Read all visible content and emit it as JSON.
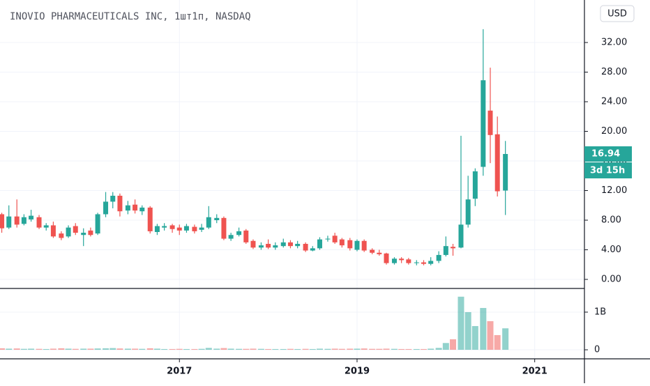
{
  "chart_data": {
    "type": "candlestick",
    "title": "INOVIO PHARMACEUTICALS INC, 1шт1п, NASDAQ",
    "currency": "USD",
    "countdown": "3d 15h",
    "up_color": "#26a69a",
    "down_color": "#ef5350",
    "volume_up_color": "#26a69a80",
    "volume_down_color": "#ef535080",
    "grid": true,
    "xlim": [
      2014.98,
      2021.56
    ],
    "xticks": [
      2017,
      2019,
      2021
    ],
    "ylim": [
      -1.13,
      37.74
    ],
    "yticks": [
      {
        "value": 0,
        "label": "0.00"
      },
      {
        "value": 4,
        "label": "4.00"
      },
      {
        "value": 8,
        "label": "8.00"
      },
      {
        "value": 12,
        "label": "12.00"
      },
      {
        "value": 16,
        "label": "16.00"
      },
      {
        "value": 20,
        "label": "20.00"
      },
      {
        "value": 24,
        "label": "24.00"
      },
      {
        "value": 28,
        "label": "28.00"
      },
      {
        "value": 32,
        "label": "32.00"
      }
    ],
    "volume_ylim": [
      -240000000,
      1610000000
    ],
    "volume_yticks": [
      0,
      {
        "value": 1000000000,
        "label": "1B"
      }
    ],
    "x": [
      2015,
      2015.08,
      2015.17,
      2015.25,
      2015.33,
      2015.42,
      2015.5,
      2015.58,
      2015.67,
      2015.75,
      2015.83,
      2015.92,
      2016,
      2016.08,
      2016.17,
      2016.25,
      2016.33,
      2016.42,
      2016.5,
      2016.58,
      2016.67,
      2016.75,
      2016.83,
      2016.92,
      2017,
      2017.08,
      2017.17,
      2017.25,
      2017.33,
      2017.42,
      2017.5,
      2017.58,
      2017.67,
      2017.75,
      2017.83,
      2017.92,
      2018,
      2018.08,
      2018.17,
      2018.25,
      2018.33,
      2018.42,
      2018.5,
      2018.58,
      2018.67,
      2018.75,
      2018.83,
      2018.92,
      2019,
      2019.08,
      2019.17,
      2019.25,
      2019.33,
      2019.42,
      2019.5,
      2019.58,
      2019.67,
      2019.75,
      2019.83,
      2019.92,
      2020,
      2020.08,
      2020.17,
      2020.25,
      2020.33,
      2020.42,
      2020.5,
      2020.58,
      2020.67
    ],
    "open": [
      8.8,
      7.0,
      8.5,
      7.5,
      8.1,
      8.4,
      7.0,
      7.3,
      6.2,
      5.8,
      7.2,
      6.0,
      6.6,
      6.2,
      8.8,
      10.5,
      11.3,
      9.3,
      10.1,
      9.2,
      9.7,
      6.4,
      7.0,
      7.3,
      7.0,
      6.6,
      7.1,
      6.7,
      7.0,
      8.0,
      8.3,
      5.5,
      6.0,
      6.6,
      5.2,
      4.3,
      4.8,
      4.3,
      4.5,
      5.0,
      4.5,
      4.8,
      3.9,
      4.2,
      5.4,
      5.9,
      5.4,
      5.3,
      4.0,
      5.2,
      4.0,
      3.6,
      3.5,
      2.2,
      2.8,
      2.7,
      2.2,
      2.3,
      2.1,
      2.5,
      3.3,
      4.4,
      4.3,
      7.4,
      10.9,
      15.2,
      22.8,
      19.6,
      12.0
    ],
    "high": [
      9.0,
      10.0,
      10.8,
      8.8,
      9.4,
      8.7,
      7.6,
      7.8,
      6.5,
      7.3,
      7.6,
      6.9,
      7.0,
      9.0,
      11.8,
      11.8,
      11.6,
      10.6,
      10.8,
      10.0,
      9.9,
      7.5,
      7.6,
      7.5,
      7.4,
      7.5,
      7.4,
      7.5,
      9.9,
      8.8,
      8.5,
      6.3,
      7.0,
      6.8,
      5.4,
      5.0,
      5.4,
      5.0,
      5.5,
      5.3,
      5.2,
      5.0,
      4.5,
      5.7,
      5.9,
      6.3,
      5.6,
      5.6,
      5.4,
      5.4,
      4.2,
      4.0,
      3.6,
      3.0,
      3.0,
      2.9,
      2.6,
      2.6,
      3.0,
      3.8,
      5.8,
      4.8,
      19.4,
      14.0,
      15.0,
      33.8,
      28.6,
      22.0,
      18.7
    ],
    "low": [
      6.3,
      6.8,
      7.0,
      7.3,
      7.8,
      6.8,
      6.6,
      5.6,
      5.3,
      5.6,
      6.0,
      4.5,
      5.8,
      6.0,
      8.4,
      9.6,
      8.5,
      8.8,
      8.9,
      8.7,
      6.2,
      6.0,
      6.6,
      6.3,
      6.0,
      6.3,
      6.2,
      6.4,
      6.8,
      7.6,
      5.3,
      5.2,
      5.8,
      4.8,
      4.1,
      4.0,
      4.1,
      4.0,
      4.3,
      4.2,
      4.2,
      3.7,
      3.8,
      4.0,
      5.1,
      4.8,
      4.3,
      3.9,
      3.8,
      3.7,
      3.4,
      3.2,
      2.0,
      2.0,
      2.2,
      2.0,
      1.9,
      1.9,
      1.9,
      2.2,
      3.1,
      3.2,
      4.2,
      7.0,
      9.9,
      14.0,
      15.7,
      11.2,
      8.7
    ],
    "close": [
      6.9,
      8.5,
      7.4,
      8.4,
      8.6,
      7.0,
      7.3,
      5.8,
      5.6,
      7.0,
      6.3,
      6.3,
      6.0,
      8.8,
      10.5,
      11.3,
      9.2,
      10.0,
      9.3,
      9.7,
      6.5,
      7.2,
      7.2,
      6.8,
      6.6,
      7.2,
      6.5,
      7.0,
      8.4,
      8.3,
      5.5,
      6.0,
      6.5,
      5.0,
      4.3,
      4.6,
      4.3,
      4.6,
      5.0,
      4.5,
      4.8,
      3.9,
      4.2,
      5.4,
      5.5,
      5.0,
      4.6,
      4.2,
      5.2,
      3.9,
      3.6,
      3.4,
      2.2,
      2.8,
      2.6,
      2.2,
      2.3,
      2.1,
      2.5,
      3.3,
      4.5,
      4.2,
      7.4,
      10.8,
      14.6,
      26.9,
      19.5,
      11.9,
      16.94
    ],
    "volume": [
      40000000,
      30000000,
      35000000,
      25000000,
      30000000,
      25000000,
      20000000,
      30000000,
      40000000,
      30000000,
      25000000,
      30000000,
      30000000,
      35000000,
      40000000,
      45000000,
      35000000,
      30000000,
      30000000,
      25000000,
      40000000,
      30000000,
      20000000,
      20000000,
      25000000,
      20000000,
      20000000,
      25000000,
      50000000,
      30000000,
      45000000,
      30000000,
      25000000,
      25000000,
      30000000,
      25000000,
      20000000,
      20000000,
      20000000,
      25000000,
      20000000,
      25000000,
      20000000,
      30000000,
      25000000,
      30000000,
      25000000,
      30000000,
      30000000,
      35000000,
      25000000,
      25000000,
      30000000,
      25000000,
      20000000,
      20000000,
      20000000,
      20000000,
      30000000,
      50000000,
      180000000,
      280000000,
      1410000000,
      1000000000,
      630000000,
      1110000000,
      760000000,
      390000000,
      570000000
    ]
  }
}
